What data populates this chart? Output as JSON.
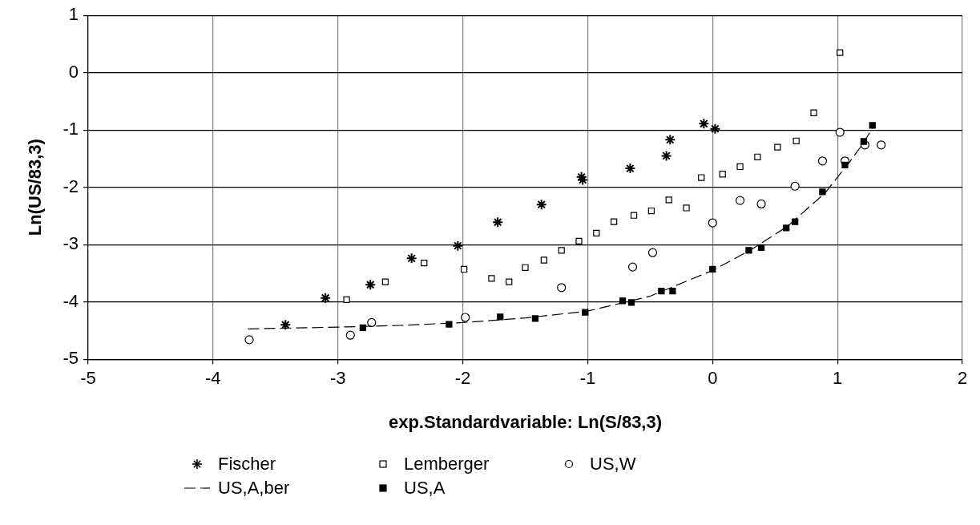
{
  "chart_data": {
    "type": "scatter",
    "xlabel": "exp.Standardvariable: Ln(S/83,3)",
    "ylabel": "Ln(US/83,3)",
    "xlim": [
      -5,
      2
    ],
    "xticks": [
      -5,
      -4,
      -3,
      -2,
      -1,
      0,
      1,
      2
    ],
    "ylim": [
      -5,
      1
    ],
    "yticks": [
      -5,
      -4,
      -3,
      -2,
      -1,
      0,
      1
    ],
    "grid": true,
    "legend": "bottom",
    "series": [
      {
        "name": "Fischer",
        "type": "scatter",
        "marker": "cross",
        "color": "#000000",
        "x": [
          -3.42,
          -3.1,
          -2.74,
          -2.41,
          -2.04,
          -1.72,
          -1.37,
          -1.05,
          -1.04,
          -0.66,
          -0.37,
          -0.34,
          -0.07,
          0.02
        ],
        "values": [
          -4.4,
          -3.93,
          -3.7,
          -3.24,
          -3.02,
          -2.61,
          -2.3,
          -1.82,
          -1.87,
          -1.67,
          -1.45,
          -1.17,
          -0.89,
          -0.98
        ]
      },
      {
        "name": "Lemberger",
        "type": "scatter",
        "marker": "square",
        "color": "#000000",
        "x": [
          -2.93,
          -2.62,
          -2.31,
          -1.99,
          -1.77,
          -1.63,
          -1.5,
          -1.35,
          -1.21,
          -1.07,
          -0.93,
          -0.79,
          -0.63,
          -0.49,
          -0.35,
          -0.21,
          -0.09,
          0.08,
          0.22,
          0.36,
          0.52,
          0.67,
          0.81,
          1.02
        ],
        "values": [
          -3.96,
          -3.65,
          -3.32,
          -3.43,
          -3.59,
          -3.65,
          -3.4,
          -3.27,
          -3.1,
          -2.94,
          -2.8,
          -2.6,
          -2.49,
          -2.41,
          -2.22,
          -2.36,
          -1.83,
          -1.77,
          -1.64,
          -1.47,
          -1.3,
          -1.19,
          -0.7,
          0.35
        ]
      },
      {
        "name": "US,W",
        "type": "scatter",
        "marker": "circle",
        "color": "#000000",
        "x": [
          -3.71,
          -2.9,
          -2.73,
          -1.98,
          -1.21,
          -0.64,
          -0.48,
          0.0,
          0.22,
          0.39,
          0.66,
          0.88,
          1.02,
          1.06,
          1.22,
          1.35
        ],
        "values": [
          -4.66,
          -4.58,
          -4.36,
          -4.27,
          -3.75,
          -3.39,
          -3.14,
          -2.62,
          -2.23,
          -2.29,
          -1.98,
          -1.54,
          -1.04,
          -1.54,
          -1.26,
          -1.26
        ]
      },
      {
        "name": "US,A,ber",
        "type": "line",
        "marker": "none",
        "line_style": "dashed",
        "color": "#000000",
        "x": [
          -3.72,
          -3.0,
          -2.5,
          -2.0,
          -1.5,
          -1.0,
          -0.5,
          0.0,
          0.3,
          0.6,
          0.9,
          1.1,
          1.2,
          1.28
        ],
        "values": [
          -4.47,
          -4.44,
          -4.41,
          -4.36,
          -4.28,
          -4.16,
          -3.9,
          -3.45,
          -3.1,
          -2.68,
          -2.1,
          -1.55,
          -1.25,
          -0.97
        ]
      },
      {
        "name": "US,A",
        "type": "scatter",
        "marker": "square",
        "color": "#000000",
        "x": [
          -2.8,
          -2.11,
          -1.7,
          -1.42,
          -1.02,
          -0.72,
          -0.65,
          -0.41,
          -0.32,
          0.0,
          0.29,
          0.39,
          0.59,
          0.66,
          0.88,
          1.06,
          1.21,
          1.28
        ],
        "values": [
          -4.45,
          -4.39,
          -4.26,
          -4.29,
          -4.18,
          -3.98,
          -4.01,
          -3.81,
          -3.81,
          -3.43,
          -3.1,
          -3.05,
          -2.71,
          -2.6,
          -2.08,
          -1.61,
          -1.2,
          -0.92
        ]
      }
    ]
  }
}
